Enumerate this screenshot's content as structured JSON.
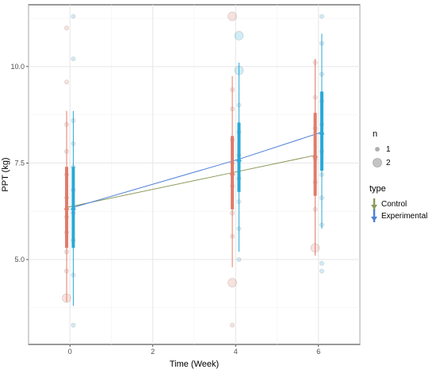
{
  "chart_data": {
    "type": "scatter",
    "xlabel": "Time (Week)",
    "ylabel": "PPT (kg)",
    "x_ticks": [
      0,
      2,
      4,
      6
    ],
    "y_ticks": [
      5.0,
      7.5,
      10.0
    ],
    "x_tick_labels": [
      "0",
      "2",
      "4",
      "6"
    ],
    "y_tick_labels": [
      "5.0",
      "7.5",
      "10.0"
    ],
    "xlim": [
      -1.0,
      7.0
    ],
    "ylim": [
      2.8,
      11.6
    ],
    "grid": true,
    "legend_placement": "right",
    "size_legend": {
      "title": "n",
      "entries": [
        "1",
        "2"
      ]
    },
    "type_legend": {
      "title": "type",
      "entries": [
        "Control",
        "Experimental"
      ]
    },
    "colors": {
      "control": "#e07b6a",
      "experimental": "#2aa8d8",
      "control_line": "#8a9a5b",
      "experimental_line": "#4f7fd8",
      "points": "#b0b0b0"
    },
    "series": [
      {
        "name": "Control",
        "x": [
          0,
          4,
          6
        ],
        "mean": [
          6.35,
          7.25,
          7.7
        ],
        "sd_low": [
          5.3,
          6.3,
          6.65
        ],
        "sd_high": [
          7.4,
          8.2,
          8.8
        ],
        "ci_low": [
          3.9,
          4.8,
          5.1
        ],
        "ci_high": [
          8.85,
          9.75,
          10.2
        ],
        "points": [
          {
            "y": 11.0,
            "n": 1
          },
          {
            "y": 9.6,
            "n": 1
          },
          {
            "y": 8.5,
            "n": 1
          },
          {
            "y": 7.8,
            "n": 1
          },
          {
            "y": 7.2,
            "n": 1
          },
          {
            "y": 6.6,
            "n": 1
          },
          {
            "y": 6.1,
            "n": 1
          },
          {
            "y": 5.7,
            "n": 1
          },
          {
            "y": 5.2,
            "n": 1
          },
          {
            "y": 4.7,
            "n": 1
          },
          {
            "y": 4.0,
            "n": 2
          },
          {
            "x": 4,
            "y": 11.3,
            "n": 2
          },
          {
            "x": 4,
            "y": 9.4,
            "n": 1
          },
          {
            "x": 4,
            "y": 8.9,
            "n": 1
          },
          {
            "x": 4,
            "y": 8.1,
            "n": 1
          },
          {
            "x": 4,
            "y": 7.5,
            "n": 1
          },
          {
            "x": 4,
            "y": 6.9,
            "n": 1
          },
          {
            "x": 4,
            "y": 6.2,
            "n": 1
          },
          {
            "x": 4,
            "y": 5.6,
            "n": 1
          },
          {
            "x": 4,
            "y": 4.4,
            "n": 2
          },
          {
            "x": 4,
            "y": 3.3,
            "n": 1
          },
          {
            "x": 6,
            "y": 10.1,
            "n": 1
          },
          {
            "x": 6,
            "y": 9.2,
            "n": 1
          },
          {
            "x": 6,
            "y": 8.4,
            "n": 1
          },
          {
            "x": 6,
            "y": 7.6,
            "n": 1
          },
          {
            "x": 6,
            "y": 7.0,
            "n": 1
          },
          {
            "x": 6,
            "y": 6.3,
            "n": 1
          },
          {
            "x": 6,
            "y": 5.3,
            "n": 2
          }
        ]
      },
      {
        "name": "Experimental",
        "x": [
          0,
          4,
          6
        ],
        "mean": [
          6.35,
          7.6,
          8.3
        ],
        "sd_low": [
          5.3,
          6.75,
          7.3
        ],
        "sd_high": [
          7.4,
          8.55,
          9.35
        ],
        "ci_low": [
          3.8,
          5.2,
          5.8
        ],
        "ci_high": [
          8.85,
          10.1,
          10.85
        ],
        "points": [
          {
            "y": 11.3,
            "n": 1
          },
          {
            "y": 10.2,
            "n": 1
          },
          {
            "y": 8.6,
            "n": 1
          },
          {
            "y": 8.0,
            "n": 1
          },
          {
            "y": 7.4,
            "n": 1
          },
          {
            "y": 6.8,
            "n": 1
          },
          {
            "y": 6.2,
            "n": 1
          },
          {
            "y": 5.5,
            "n": 1
          },
          {
            "y": 4.6,
            "n": 1
          },
          {
            "y": 3.3,
            "n": 1
          },
          {
            "x": 4,
            "y": 10.8,
            "n": 2
          },
          {
            "x": 4,
            "y": 9.9,
            "n": 2
          },
          {
            "x": 4,
            "y": 9.0,
            "n": 1
          },
          {
            "x": 4,
            "y": 8.3,
            "n": 1
          },
          {
            "x": 4,
            "y": 7.7,
            "n": 1
          },
          {
            "x": 4,
            "y": 7.1,
            "n": 1
          },
          {
            "x": 4,
            "y": 6.5,
            "n": 1
          },
          {
            "x": 4,
            "y": 5.8,
            "n": 1
          },
          {
            "x": 4,
            "y": 5.0,
            "n": 1
          },
          {
            "x": 6,
            "y": 11.3,
            "n": 1
          },
          {
            "x": 6,
            "y": 10.6,
            "n": 1
          },
          {
            "x": 6,
            "y": 9.8,
            "n": 1
          },
          {
            "x": 6,
            "y": 9.1,
            "n": 1
          },
          {
            "x": 6,
            "y": 8.5,
            "n": 1
          },
          {
            "x": 6,
            "y": 7.8,
            "n": 1
          },
          {
            "x": 6,
            "y": 7.2,
            "n": 1
          },
          {
            "x": 6,
            "y": 6.6,
            "n": 1
          },
          {
            "x": 6,
            "y": 5.9,
            "n": 1
          },
          {
            "x": 6,
            "y": 4.9,
            "n": 1
          },
          {
            "x": 6,
            "y": 4.7,
            "n": 1
          }
        ]
      }
    ]
  }
}
